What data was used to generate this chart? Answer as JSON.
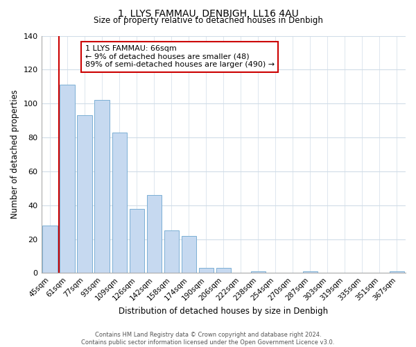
{
  "title": "1, LLYS FAMMAU, DENBIGH, LL16 4AU",
  "subtitle": "Size of property relative to detached houses in Denbigh",
  "xlabel": "Distribution of detached houses by size in Denbigh",
  "ylabel": "Number of detached properties",
  "bar_labels": [
    "45sqm",
    "61sqm",
    "77sqm",
    "93sqm",
    "109sqm",
    "126sqm",
    "142sqm",
    "158sqm",
    "174sqm",
    "190sqm",
    "206sqm",
    "222sqm",
    "238sqm",
    "254sqm",
    "270sqm",
    "287sqm",
    "303sqm",
    "319sqm",
    "335sqm",
    "351sqm",
    "367sqm"
  ],
  "bar_values": [
    28,
    111,
    93,
    102,
    83,
    38,
    46,
    25,
    22,
    3,
    3,
    0,
    1,
    0,
    0,
    1,
    0,
    0,
    0,
    0,
    1
  ],
  "bar_color": "#c6d9f0",
  "bar_edge_color": "#7bafd4",
  "vline_x": 0.5,
  "vline_color": "#cc0000",
  "ylim": [
    0,
    140
  ],
  "yticks": [
    0,
    20,
    40,
    60,
    80,
    100,
    120,
    140
  ],
  "annotation_title": "1 LLYS FAMMAU: 66sqm",
  "annotation_line1": "← 9% of detached houses are smaller (48)",
  "annotation_line2": "89% of semi-detached houses are larger (490) →",
  "footer_line1": "Contains HM Land Registry data © Crown copyright and database right 2024.",
  "footer_line2": "Contains public sector information licensed under the Open Government Licence v3.0.",
  "background_color": "#ffffff",
  "grid_color": "#d0dce8"
}
